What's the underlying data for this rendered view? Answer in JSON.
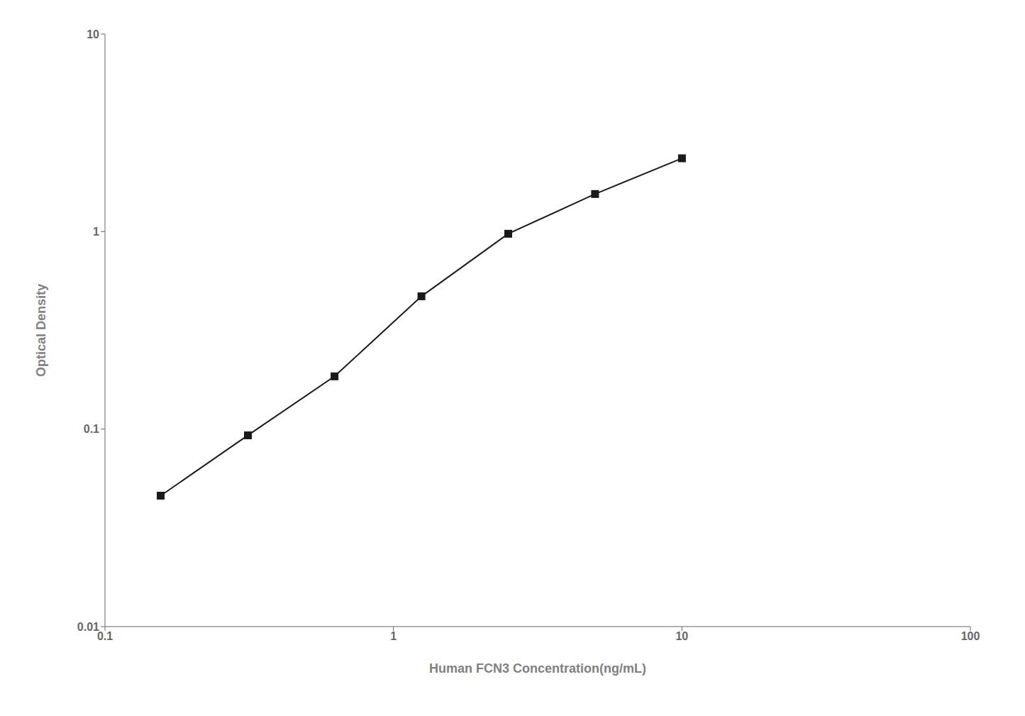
{
  "chart_data": {
    "type": "line",
    "x": [
      0.156,
      0.313,
      0.625,
      1.25,
      2.5,
      5.0,
      10.0
    ],
    "values": [
      0.046,
      0.093,
      0.185,
      0.47,
      0.975,
      1.55,
      2.35
    ],
    "xlabel": "Human FCN3 Concentration(ng/mL)",
    "ylabel": "Optical Density",
    "xlim": [
      0.1,
      100
    ],
    "ylim": [
      0.01,
      10
    ],
    "xticks": [
      0.1,
      1,
      10,
      100
    ],
    "yticks": [
      0.01,
      0.1,
      1,
      10
    ],
    "log": true,
    "color": "#1a1a1a",
    "marker": "square",
    "grid": false
  }
}
